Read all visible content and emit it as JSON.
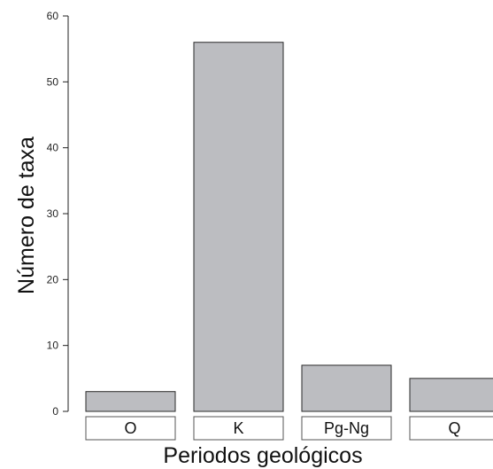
{
  "chart_data": {
    "type": "bar",
    "categories": [
      "O",
      "K",
      "Pg-Ng",
      "Q"
    ],
    "values": [
      3,
      56,
      7,
      5
    ],
    "xlabel": "Periodos geológicos",
    "ylabel": "Número de taxa",
    "ylim": [
      0,
      60
    ],
    "yticks": [
      "0",
      "10",
      "20",
      "30",
      "40",
      "50",
      "60"
    ],
    "bar_color": "#bcbdc1",
    "bar_edge_color": "#2a2a2a",
    "grid": false,
    "legend": "none"
  }
}
